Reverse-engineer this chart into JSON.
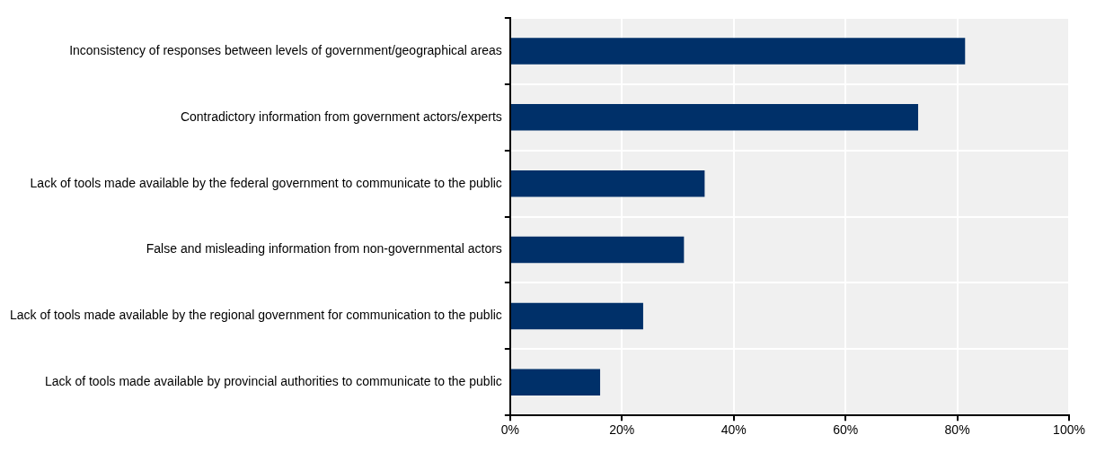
{
  "chart_data": {
    "type": "bar",
    "orientation": "horizontal",
    "categories": [
      "Inconsistency of responses between levels of government/geographical areas",
      "Contradictory information from government actors/experts",
      "Lack of tools made available by the federal government to communicate to the public",
      "False and misleading information from non-governmental actors",
      "Lack of tools made available by the regional government for communication to the public",
      "Lack of tools made available by provincial authorities to communicate to the public"
    ],
    "values": [
      81.4,
      73,
      34.8,
      31.1,
      23.8,
      16.1
    ],
    "color": "#003069",
    "xlim": [
      0,
      100
    ],
    "xticks": [
      {
        "value": 0,
        "label": "0%"
      },
      {
        "value": 20,
        "label": "20%"
      },
      {
        "value": 40,
        "label": "40%"
      },
      {
        "value": 60,
        "label": "60%"
      },
      {
        "value": 80,
        "label": "80%"
      },
      {
        "value": 100,
        "label": "100%"
      }
    ],
    "grid": true,
    "legend": false
  }
}
